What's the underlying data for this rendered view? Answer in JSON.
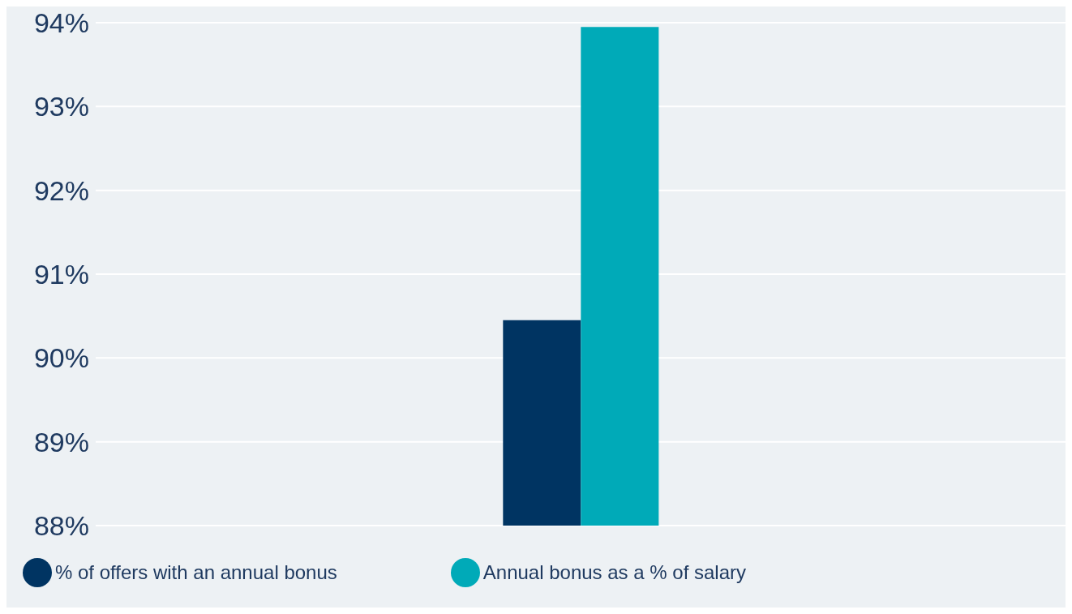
{
  "chart_data": {
    "type": "bar",
    "categories": [
      null
    ],
    "series": [
      {
        "name": "% of offers with an annual bonus",
        "color": "#003462",
        "values": [
          90.45
        ]
      },
      {
        "name": "Annual bonus as a % of salary",
        "color": "#00aab8",
        "values": [
          93.95
        ]
      }
    ],
    "ylim": [
      88,
      94
    ],
    "yticks": [
      {
        "value": 88,
        "label": "88%"
      },
      {
        "value": 89,
        "label": "89%"
      },
      {
        "value": 90,
        "label": "90%"
      },
      {
        "value": 91,
        "label": "91%"
      },
      {
        "value": 92,
        "label": "92%"
      },
      {
        "value": 93,
        "label": "93%"
      },
      {
        "value": 94,
        "label": "94%"
      }
    ],
    "grid": "y",
    "legend": "bottom"
  }
}
